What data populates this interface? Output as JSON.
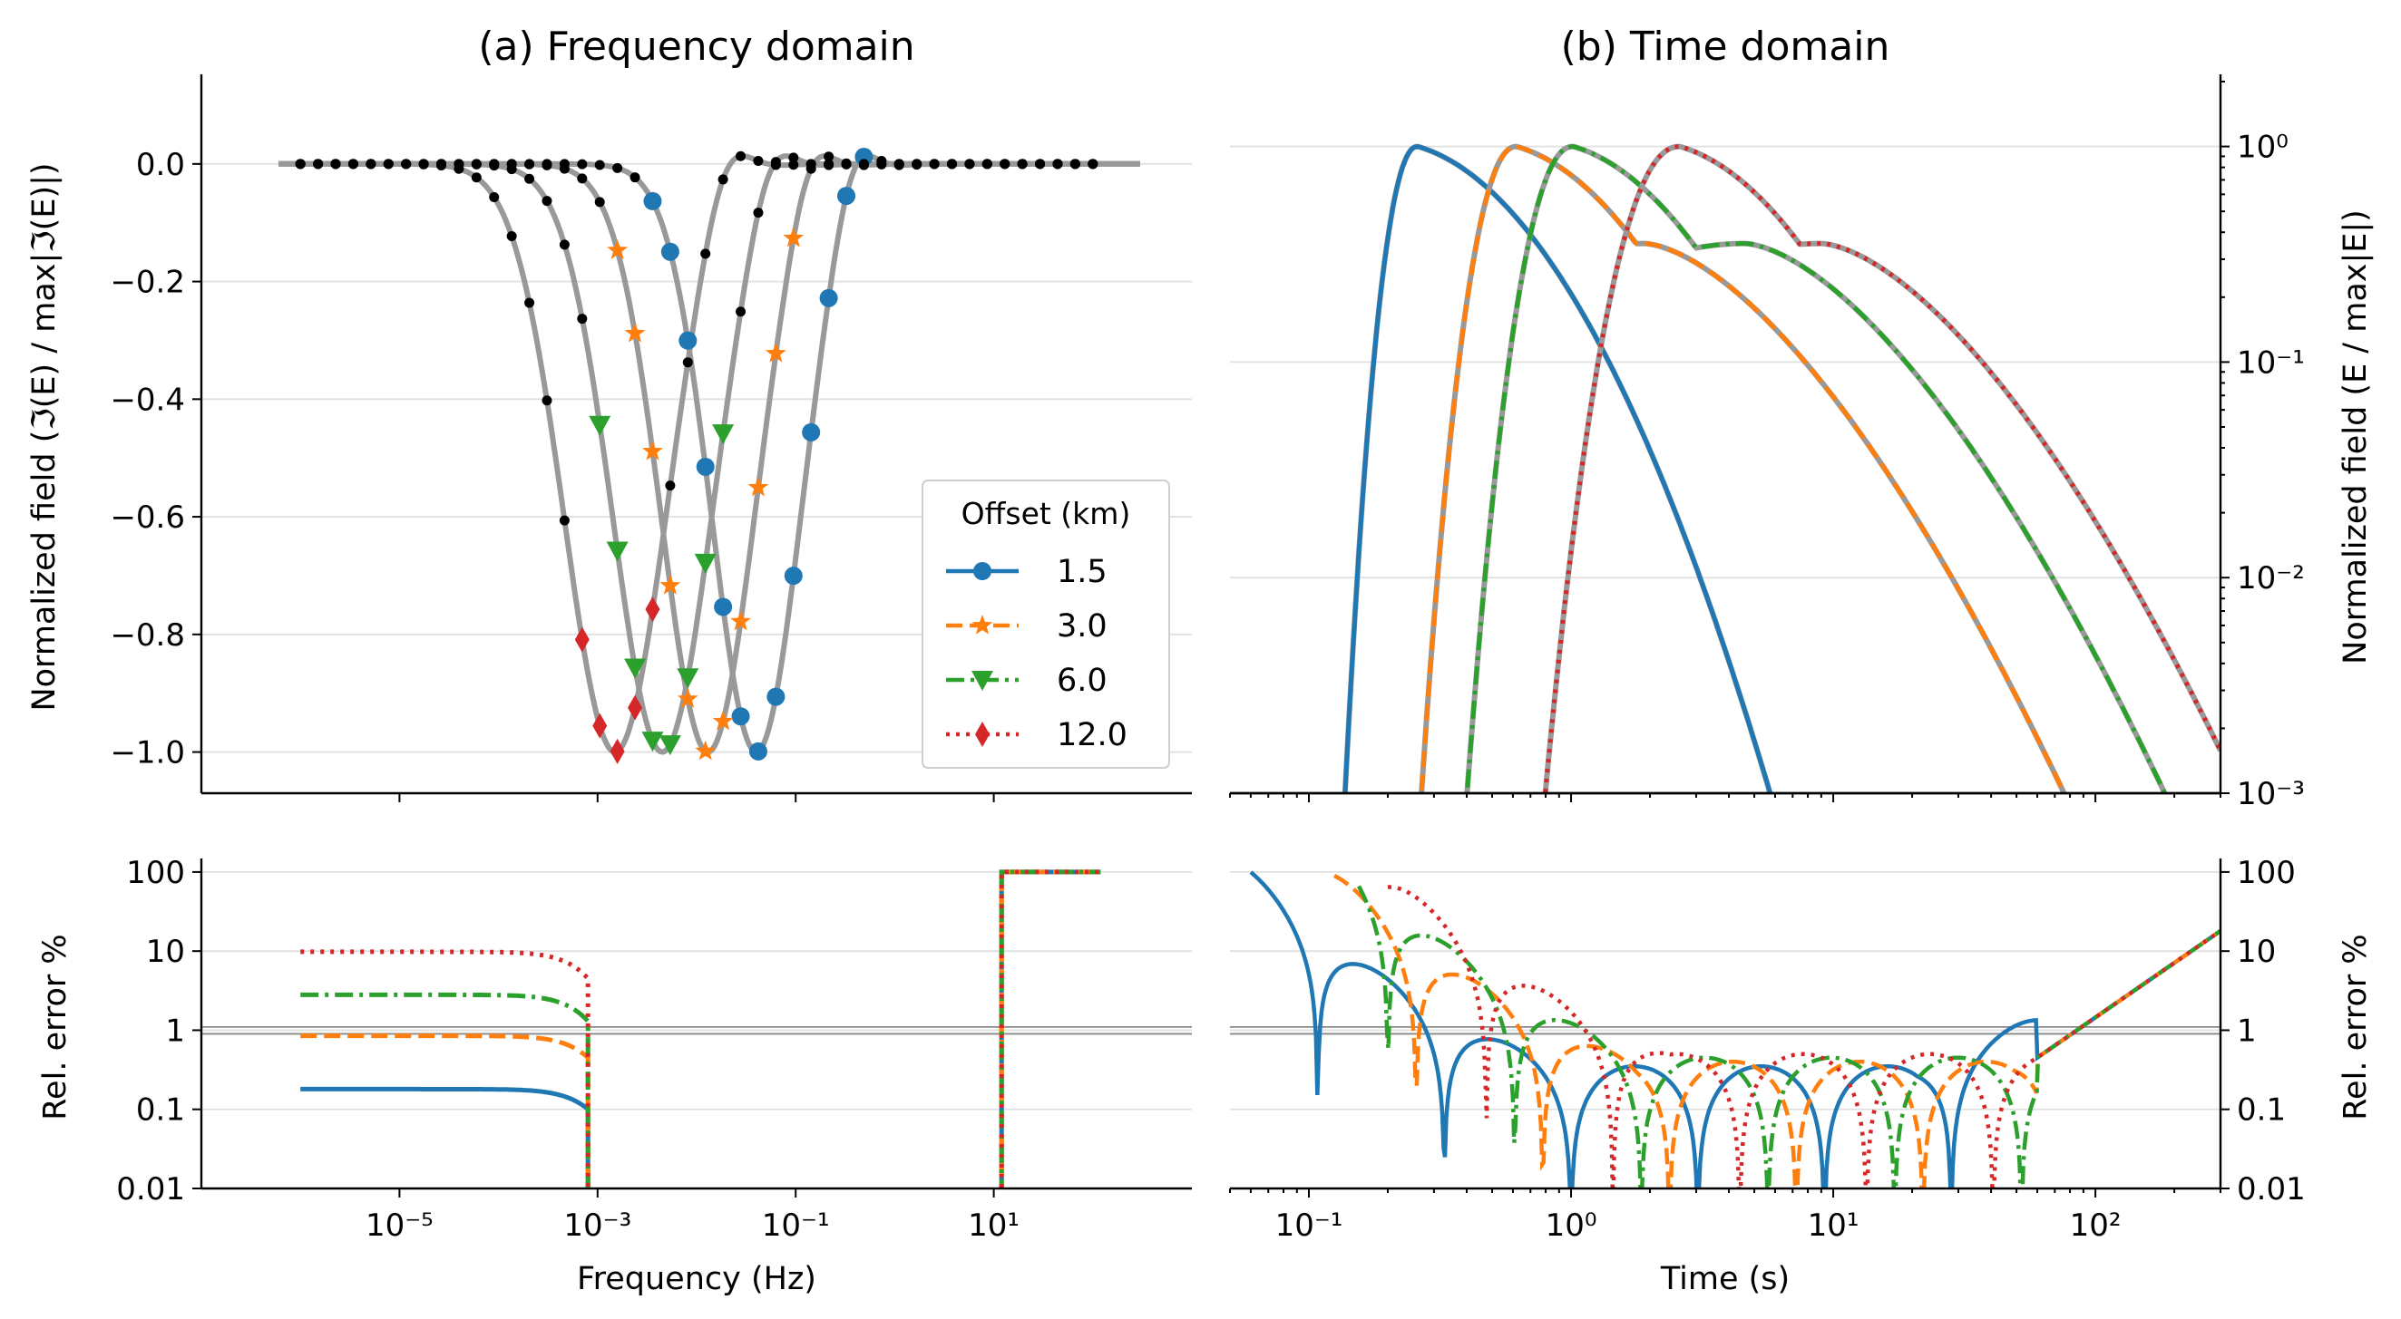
{
  "figure": {
    "title_a": "(a) Frequency domain",
    "title_b": "(b) Time domain"
  },
  "colors": {
    "1.5": "#1f77b4",
    "3.0": "#ff7f0e",
    "6.0": "#2ca02c",
    "12.0": "#d62728",
    "reference": "#999999",
    "black_markers": "#000000"
  },
  "chart_data": [
    {
      "id": "freq_top",
      "type": "line",
      "title": "(a) Frequency domain",
      "xlabel": "",
      "ylabel": "Normalized field (ℑ(E) / max|ℑ(E)|)",
      "xscale": "log",
      "xlim": [
        1e-07,
        1000.0
      ],
      "ylim": [
        -1.07,
        0.14
      ],
      "yticks": [
        0.0,
        -0.2,
        -0.4,
        -0.6,
        -0.8,
        -1.0
      ],
      "yticklabels": [
        "0.0",
        "−0.2",
        "−0.4",
        "−0.6",
        "−0.8",
        "−1.0"
      ],
      "legend_title": "Offset (km)",
      "legend_position": "lower right",
      "series": [
        {
          "name": "1.5",
          "style": "solid",
          "marker": "circle",
          "min_freq": 0.04,
          "width": 0.63
        },
        {
          "name": "3.0",
          "style": "dashed",
          "marker": "star",
          "min_freq": 0.013,
          "width": 0.66
        },
        {
          "name": "6.0",
          "style": "dashdot",
          "marker": "triangle-down",
          "min_freq": 0.0045,
          "width": 0.7
        },
        {
          "name": "12.0",
          "style": "dotted",
          "marker": "diamond",
          "min_freq": 0.0015,
          "width": 0.72
        }
      ],
      "overshoot_peak": 0.075,
      "grey_line_range": [
        6e-07,
        300
      ],
      "black_marker_range": [
        1e-06,
        100
      ]
    },
    {
      "id": "freq_bottom",
      "type": "line",
      "xlabel": "Frequency (Hz)",
      "ylabel": "Rel. error %",
      "xscale": "log",
      "yscale": "log",
      "xlim": [
        1e-07,
        1000.0
      ],
      "ylim": [
        0.01,
        120
      ],
      "xticks": [
        1e-05,
        0.001,
        0.1,
        10.0
      ],
      "xticklabels": [
        "10⁻⁵",
        "10⁻³",
        "10⁻¹",
        "10¹"
      ],
      "yticks": [
        0.01,
        0.1,
        1,
        10,
        100
      ],
      "yticklabels": [
        "0.01",
        "0.1",
        "1",
        "10",
        "100"
      ],
      "reference_lines": [
        0.9,
        1.1
      ],
      "series": [
        {
          "name": "1.5",
          "plateau": 0.18,
          "end_value": 0.1
        },
        {
          "name": "3.0",
          "plateau": 0.85,
          "end_value": 0.45
        },
        {
          "name": "6.0",
          "plateau": 2.8,
          "end_value": 1.3
        },
        {
          "name": "12.0",
          "plateau": 9.8,
          "end_value": 4.5
        }
      ],
      "x_start": 1e-06,
      "x_cut": 0.0008,
      "x_jump": 12,
      "x_end": 120,
      "high_value": 100
    },
    {
      "id": "time_top",
      "type": "line",
      "title": "(b) Time domain",
      "xlabel": "",
      "ylabel": "Normalized field (E / max|E|)",
      "xscale": "log",
      "yscale": "log",
      "xlim": [
        0.05,
        300
      ],
      "ylim": [
        0.001,
        2
      ],
      "yticks": [
        0.001,
        0.01,
        0.1,
        1
      ],
      "yticklabels": [
        "10⁻³",
        "10⁻²",
        "10⁻¹",
        "10⁰"
      ],
      "series": [
        {
          "name": "1.5",
          "peak_time": 0.26,
          "shoulder_time": null,
          "onset_time": 0.13
        },
        {
          "name": "3.0",
          "peak_time": 0.62,
          "shoulder_time": 1.9,
          "onset_time": 0.25
        },
        {
          "name": "6.0",
          "peak_time": 1.02,
          "shoulder_time": 4.6,
          "onset_time": 0.37
        },
        {
          "name": "12.0",
          "peak_time": 2.6,
          "shoulder_time": 9.0,
          "onset_time": 0.72
        }
      ]
    },
    {
      "id": "time_bottom",
      "type": "line",
      "xlabel": "Time (s)",
      "ylabel": "Rel. error %",
      "xscale": "log",
      "yscale": "log",
      "xlim": [
        0.05,
        300
      ],
      "ylim": [
        0.01,
        120
      ],
      "xticks": [
        0.1,
        1,
        10,
        100
      ],
      "xticklabels": [
        "10⁻¹",
        "10⁰",
        "10¹",
        "10²"
      ],
      "yticks": [
        0.01,
        0.1,
        1,
        10,
        100
      ],
      "yticklabels": [
        "0.01",
        "0.1",
        "1",
        "10",
        "100"
      ],
      "reference_lines": [
        0.9,
        1.1
      ],
      "tail_value_at_300s": 18,
      "series": [
        {
          "name": "1.5",
          "start_time": 0.06,
          "start_value": 100
        },
        {
          "name": "3.0",
          "start_time": 0.125,
          "start_value": 100
        },
        {
          "name": "6.0",
          "start_time": 0.155,
          "start_value": 100
        },
        {
          "name": "12.0",
          "start_time": 0.2,
          "start_value": 100
        }
      ]
    }
  ]
}
